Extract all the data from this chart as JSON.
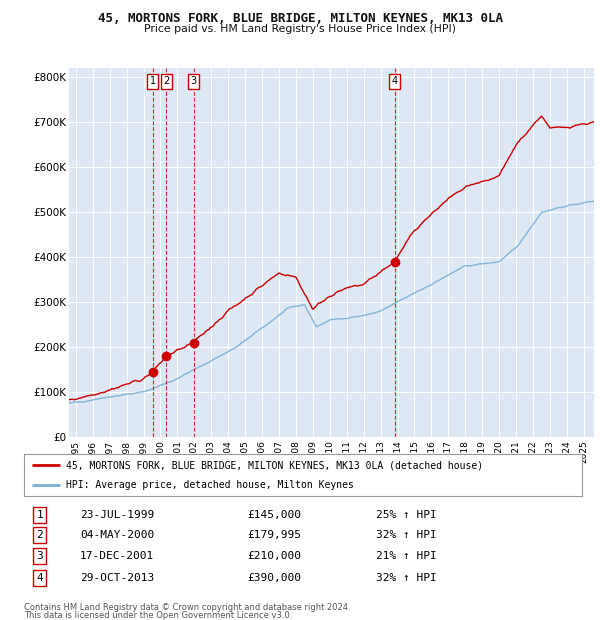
{
  "title": "45, MORTONS FORK, BLUE BRIDGE, MILTON KEYNES, MK13 0LA",
  "subtitle": "Price paid vs. HM Land Registry's House Price Index (HPI)",
  "legend_line1": "45, MORTONS FORK, BLUE BRIDGE, MILTON KEYNES, MK13 0LA (detached house)",
  "legend_line2": "HPI: Average price, detached house, Milton Keynes",
  "footer1": "Contains HM Land Registry data © Crown copyright and database right 2024.",
  "footer2": "This data is licensed under the Open Government Licence v3.0.",
  "transactions": [
    {
      "num": 1,
      "date": "23-JUL-1999",
      "price": 145000,
      "pct": "25%",
      "year": 1999.55
    },
    {
      "num": 2,
      "date": "04-MAY-2000",
      "price": 179995,
      "pct": "32%",
      "year": 2000.34
    },
    {
      "num": 3,
      "date": "17-DEC-2001",
      "price": 210000,
      "pct": "21%",
      "year": 2001.96
    },
    {
      "num": 4,
      "date": "29-OCT-2013",
      "price": 390000,
      "pct": "32%",
      "year": 2013.83
    }
  ],
  "hpi_color": "#7bafd4",
  "property_color": "#cc0000",
  "dashed_line_color": "#cc0000",
  "plot_bg": "#dde8f4",
  "grid_color": "#ffffff",
  "ylim": [
    0,
    820000
  ],
  "yticks": [
    0,
    100000,
    200000,
    300000,
    400000,
    500000,
    600000,
    700000,
    800000
  ],
  "xmin": 1994.6,
  "xmax": 2025.6
}
